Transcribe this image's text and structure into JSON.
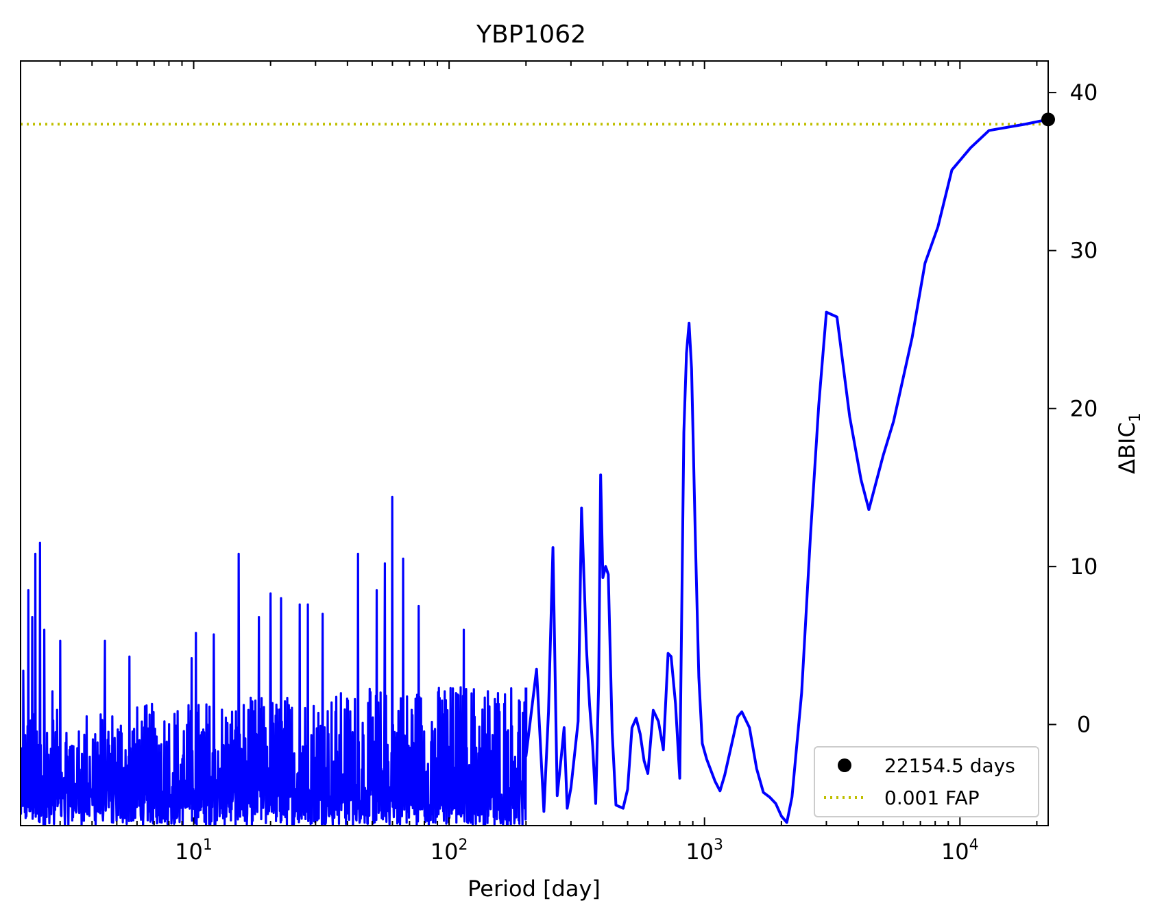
{
  "chart_data": {
    "type": "line",
    "title": "YBP1062",
    "xlabel": "Period [day]",
    "ylabel_main": "ΔBIC",
    "ylabel_sub": "1",
    "xscale": "log",
    "xlim": [
      2.1,
      22154.5
    ],
    "ylim": [
      -6.4,
      42
    ],
    "grid": false,
    "legend_position": "lower-right",
    "x_ticks": [
      {
        "value": 10,
        "base": "10",
        "exp": "1"
      },
      {
        "value": 100,
        "base": "10",
        "exp": "2"
      },
      {
        "value": 1000,
        "base": "10",
        "exp": "3"
      },
      {
        "value": 10000,
        "base": "10",
        "exp": "4"
      }
    ],
    "y_ticks": [
      {
        "value": 0,
        "label": "0"
      },
      {
        "value": 10,
        "label": "10"
      },
      {
        "value": 20,
        "label": "20"
      },
      {
        "value": 30,
        "label": "30"
      },
      {
        "value": 40,
        "label": "40"
      }
    ],
    "series": [
      {
        "name": "",
        "color": "#0000ff",
        "points": [
          [
            200,
            -2
          ],
          [
            220,
            3.5
          ],
          [
            235,
            -5.5
          ],
          [
            245,
            0.8
          ],
          [
            255,
            11.2
          ],
          [
            265,
            -4.5
          ],
          [
            275,
            -2
          ],
          [
            282,
            -0.2
          ],
          [
            290,
            -5.3
          ],
          [
            300,
            -4
          ],
          [
            320,
            0.2
          ],
          [
            330,
            13.7
          ],
          [
            345,
            4.8
          ],
          [
            355,
            1.2
          ],
          [
            365,
            -1.4
          ],
          [
            375,
            -5
          ],
          [
            385,
            2.5
          ],
          [
            392,
            15.8
          ],
          [
            400,
            9.3
          ],
          [
            410,
            10.0
          ],
          [
            420,
            9.5
          ],
          [
            435,
            -0.5
          ],
          [
            450,
            -5.1
          ],
          [
            480,
            -5.3
          ],
          [
            500,
            -4.1
          ],
          [
            520,
            -0.2
          ],
          [
            540,
            0.4
          ],
          [
            560,
            -0.6
          ],
          [
            580,
            -2.3
          ],
          [
            600,
            -3.1
          ],
          [
            630,
            0.9
          ],
          [
            660,
            0.2
          ],
          [
            690,
            -1.6
          ],
          [
            720,
            4.5
          ],
          [
            740,
            4.3
          ],
          [
            770,
            1.3
          ],
          [
            800,
            -3.4
          ],
          [
            830,
            18.5
          ],
          [
            850,
            23.5
          ],
          [
            870,
            25.4
          ],
          [
            890,
            22.5
          ],
          [
            920,
            12
          ],
          [
            950,
            3
          ],
          [
            980,
            -1.2
          ],
          [
            1020,
            -2.2
          ],
          [
            1100,
            -3.6
          ],
          [
            1150,
            -4.2
          ],
          [
            1200,
            -3.2
          ],
          [
            1300,
            -0.7
          ],
          [
            1350,
            0.5
          ],
          [
            1400,
            0.8
          ],
          [
            1500,
            -0.2
          ],
          [
            1600,
            -2.8
          ],
          [
            1700,
            -4.3
          ],
          [
            1800,
            -4.6
          ],
          [
            1900,
            -5.0
          ],
          [
            2000,
            -5.8
          ],
          [
            2100,
            -6.2
          ],
          [
            2200,
            -4.6
          ],
          [
            2400,
            2
          ],
          [
            2600,
            12
          ],
          [
            2800,
            20.2
          ],
          [
            3000,
            26.1
          ],
          [
            3300,
            25.8
          ],
          [
            3700,
            19.5
          ],
          [
            4100,
            15.5
          ],
          [
            4400,
            13.6
          ],
          [
            5000,
            17
          ],
          [
            5500,
            19.2
          ],
          [
            6500,
            24.5
          ],
          [
            7300,
            29.2
          ],
          [
            8200,
            31.5
          ],
          [
            9300,
            35.1
          ],
          [
            11000,
            36.5
          ],
          [
            13000,
            37.6
          ],
          [
            18000,
            38.0
          ],
          [
            22154.5,
            38.3
          ]
        ]
      }
    ],
    "noise_region": {
      "x_from": 2.1,
      "x_to": 200,
      "y_min": -6.4,
      "note": "dense oscillating periodogram, peaks listed below"
    },
    "noise_peaks": [
      [
        2.15,
        3.4
      ],
      [
        2.25,
        8.5
      ],
      [
        2.33,
        6.8
      ],
      [
        2.4,
        10.8
      ],
      [
        2.5,
        11.5
      ],
      [
        2.6,
        6.0
      ],
      [
        2.8,
        2.1
      ],
      [
        3.0,
        5.3
      ],
      [
        3.5,
        -1.5
      ],
      [
        4.5,
        5.3
      ],
      [
        5.6,
        4.3
      ],
      [
        9.8,
        4.2
      ],
      [
        10.2,
        5.8
      ],
      [
        12,
        5.7
      ],
      [
        15,
        10.8
      ],
      [
        18,
        6.8
      ],
      [
        20,
        8.3
      ],
      [
        22,
        8.0
      ],
      [
        26,
        7.6
      ],
      [
        28,
        7.6
      ],
      [
        32,
        7.0
      ],
      [
        44,
        10.8
      ],
      [
        52,
        8.5
      ],
      [
        56,
        10.2
      ],
      [
        60,
        14.4
      ],
      [
        66,
        10.5
      ],
      [
        76,
        7.5
      ],
      [
        96,
        2.1
      ],
      [
        114,
        6.0
      ]
    ],
    "fap_line": {
      "value": 38.0,
      "color": "#bfbf00",
      "label": "0.001 FAP"
    },
    "best_period": {
      "x": 22154.5,
      "y": 38.3,
      "label": "22154.5 days",
      "color": "#000000"
    }
  }
}
